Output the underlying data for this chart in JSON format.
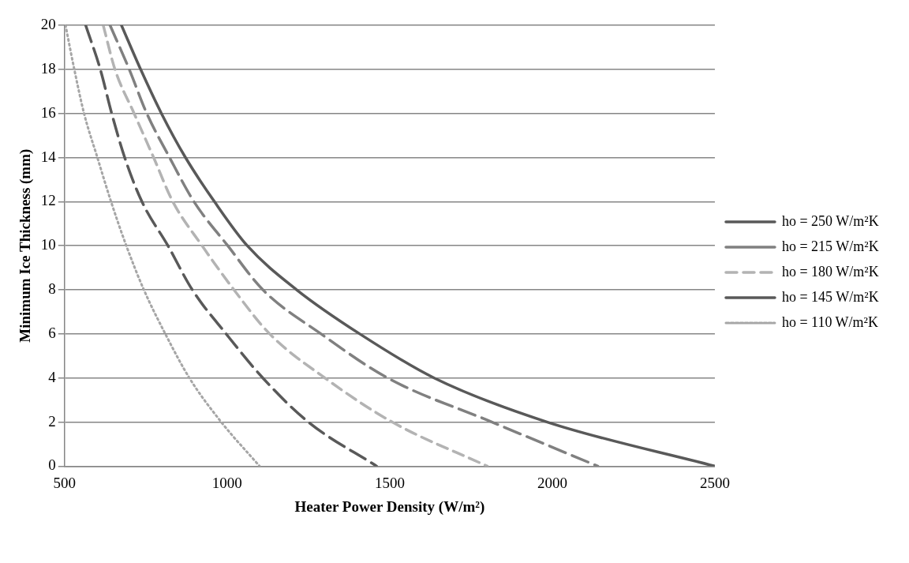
{
  "chart_data": {
    "type": "line",
    "xlabel": "Heater Power Density (W/m²)",
    "ylabel": "Minimum Ice Thickness (mm)",
    "xlim": [
      500,
      2500
    ],
    "xticks": [
      500,
      1000,
      1500,
      2000,
      2500
    ],
    "ylim": [
      0,
      20
    ],
    "yticks": [
      0,
      2,
      4,
      6,
      8,
      10,
      12,
      14,
      16,
      18,
      20
    ],
    "grid": "y",
    "legend": "right",
    "marker": "none",
    "series": [
      {
        "name": "ho = 250 W/m²K",
        "color": "#595959",
        "line_style": "solid",
        "x": [
          675,
          734,
          798,
          872,
          961,
          1062,
          1214,
          1408,
          1637,
          1985,
          2500
        ],
        "values": [
          20,
          18,
          16,
          14,
          12,
          10,
          8,
          6,
          4,
          2,
          0
        ]
      },
      {
        "name": "ho = 215 W/m²K",
        "color": "#808080",
        "line_style": "dashed",
        "x": [
          640,
          699,
          753,
          823,
          898,
          1002,
          1110,
          1289,
          1494,
          1815,
          2140
        ],
        "values": [
          20,
          18,
          16,
          14,
          12,
          10,
          8,
          6,
          4,
          2,
          0
        ]
      },
      {
        "name": "ho = 180 W/m²K",
        "color": "#b3b3b3",
        "line_style": "dashed",
        "x": [
          619,
          655,
          714,
          774,
          833,
          923,
          1021,
          1131,
          1301,
          1508,
          1800
        ],
        "values": [
          20,
          18,
          16,
          14,
          12,
          10,
          8,
          6,
          4,
          2,
          0
        ]
      },
      {
        "name": "ho = 145 W/m²K",
        "color": "#595959",
        "line_style": "dashed",
        "x": [
          565,
          610,
          645,
          685,
          738,
          818,
          893,
          997,
          1110,
          1250,
          1460
        ],
        "values": [
          20,
          18,
          16,
          14,
          12,
          10,
          8,
          6,
          4,
          2,
          0
        ]
      },
      {
        "name": "ho = 110 W/m²K",
        "color": "#a6a6a6",
        "line_style": "dotted",
        "x": [
          503,
          530,
          560,
          601,
          643,
          690,
          744,
          810,
          884,
          982,
          1100
        ],
        "values": [
          20,
          18,
          16,
          14,
          12,
          10,
          8,
          6,
          4,
          2,
          0
        ]
      }
    ]
  }
}
